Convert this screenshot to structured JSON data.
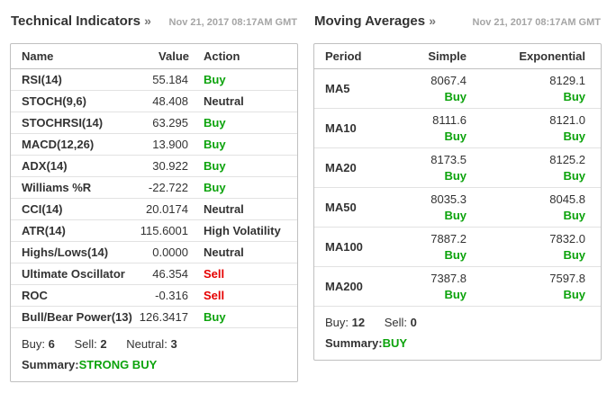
{
  "colors": {
    "buy_green": "#0ca30c",
    "sell_red": "#e60000",
    "neutral_text": "#333333",
    "timestamp_gray": "#a5a5a5",
    "border_gray": "#c0c0c0"
  },
  "left": {
    "title": "Technical Indicators",
    "title_arrow": "»",
    "timestamp": "Nov 21, 2017 08:17AM GMT",
    "columns": [
      "Name",
      "Value",
      "Action"
    ],
    "rows": [
      {
        "name": "RSI(14)",
        "value": "55.184",
        "action": "Buy",
        "action_class": "buy"
      },
      {
        "name": "STOCH(9,6)",
        "value": "48.408",
        "action": "Neutral",
        "action_class": "neutral"
      },
      {
        "name": "STOCHRSI(14)",
        "value": "63.295",
        "action": "Buy",
        "action_class": "buy"
      },
      {
        "name": "MACD(12,26)",
        "value": "13.900",
        "action": "Buy",
        "action_class": "buy"
      },
      {
        "name": "ADX(14)",
        "value": "30.922",
        "action": "Buy",
        "action_class": "buy"
      },
      {
        "name": "Williams %R",
        "value": "-22.722",
        "action": "Buy",
        "action_class": "buy"
      },
      {
        "name": "CCI(14)",
        "value": "20.0174",
        "action": "Neutral",
        "action_class": "neutral"
      },
      {
        "name": "ATR(14)",
        "value": "115.6001",
        "action": "High Volatility",
        "action_class": "volatility"
      },
      {
        "name": "Highs/Lows(14)",
        "value": "0.0000",
        "action": "Neutral",
        "action_class": "neutral"
      },
      {
        "name": "Ultimate Oscillator",
        "value": "46.354",
        "action": "Sell",
        "action_class": "sell"
      },
      {
        "name": "ROC",
        "value": "-0.316",
        "action": "Sell",
        "action_class": "sell"
      },
      {
        "name": "Bull/Bear Power(13)",
        "value": "126.3417",
        "action": "Buy",
        "action_class": "buy"
      }
    ],
    "counts": [
      {
        "label": "Buy:",
        "value": "6"
      },
      {
        "label": "Sell:",
        "value": "2"
      },
      {
        "label": "Neutral:",
        "value": "3"
      }
    ],
    "summary_label": "Summary:",
    "summary_value": "STRONG BUY",
    "summary_class": "buy"
  },
  "right": {
    "title": "Moving Averages",
    "title_arrow": "»",
    "timestamp": "Nov 21, 2017 08:17AM GMT",
    "columns": [
      "Period",
      "Simple",
      "Exponential"
    ],
    "rows": [
      {
        "period": "MA5",
        "simple": "8067.4",
        "simple_action": "Buy",
        "simple_action_class": "buy",
        "exponential": "8129.1",
        "exponential_action": "Buy",
        "exponential_action_class": "buy"
      },
      {
        "period": "MA10",
        "simple": "8111.6",
        "simple_action": "Buy",
        "simple_action_class": "buy",
        "exponential": "8121.0",
        "exponential_action": "Buy",
        "exponential_action_class": "buy"
      },
      {
        "period": "MA20",
        "simple": "8173.5",
        "simple_action": "Buy",
        "simple_action_class": "buy",
        "exponential": "8125.2",
        "exponential_action": "Buy",
        "exponential_action_class": "buy"
      },
      {
        "period": "MA50",
        "simple": "8035.3",
        "simple_action": "Buy",
        "simple_action_class": "buy",
        "exponential": "8045.8",
        "exponential_action": "Buy",
        "exponential_action_class": "buy"
      },
      {
        "period": "MA100",
        "simple": "7887.2",
        "simple_action": "Buy",
        "simple_action_class": "buy",
        "exponential": "7832.0",
        "exponential_action": "Buy",
        "exponential_action_class": "buy"
      },
      {
        "period": "MA200",
        "simple": "7387.8",
        "simple_action": "Buy",
        "simple_action_class": "buy",
        "exponential": "7597.8",
        "exponential_action": "Buy",
        "exponential_action_class": "buy"
      }
    ],
    "counts": [
      {
        "label": "Buy:",
        "value": "12"
      },
      {
        "label": "Sell:",
        "value": "0"
      }
    ],
    "summary_label": "Summary:",
    "summary_value": "BUY",
    "summary_class": "buy"
  }
}
